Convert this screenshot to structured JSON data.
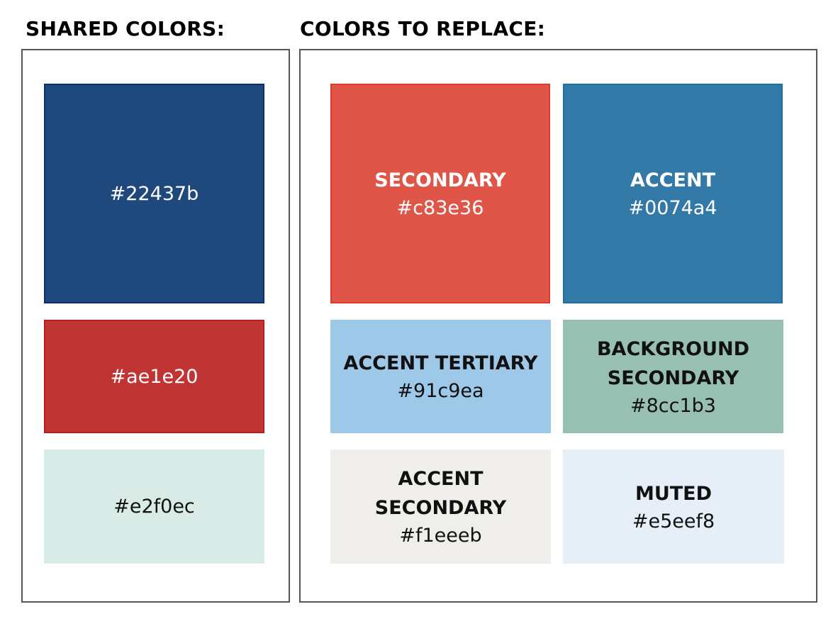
{
  "headings": {
    "shared": "SHARED COLORS:",
    "replace": "COLORS TO REPLACE:"
  },
  "shared_colors": [
    {
      "hex": "#22437b",
      "fill": "#1f497d",
      "border": "#0e2d6b"
    },
    {
      "hex": "#ae1e20",
      "fill": "#c03433",
      "border": "#c01a1a"
    },
    {
      "hex": "#e2f0ec",
      "fill": "#d9ebe6",
      "border": "#d9ebe6"
    }
  ],
  "colors_to_replace": [
    {
      "name": "SECONDARY",
      "hex": "#c83e36",
      "fill": "#df5649",
      "border": "#e03a2c"
    },
    {
      "name": "ACCENT",
      "hex": "#0074a4",
      "fill": "#3279a8",
      "border": "#1f6fa3"
    },
    {
      "name": "ACCENT TERTIARY",
      "hex": "#91c9ea",
      "fill": "#9dc8e7",
      "border": "#9dc8e7"
    },
    {
      "name": "BACKGROUND\nSECONDARY",
      "hex": "#8cc1b3",
      "fill": "#97c0b2",
      "border": "#97c0b2"
    },
    {
      "name": "ACCENT\nSECONDARY",
      "hex": "#f1eeeb",
      "fill": "#efeeeb",
      "border": "#efeeeb"
    },
    {
      "name": "MUTED",
      "hex": "#e5eef8",
      "fill": "#e6eef8",
      "border": "#e6eef8"
    }
  ]
}
